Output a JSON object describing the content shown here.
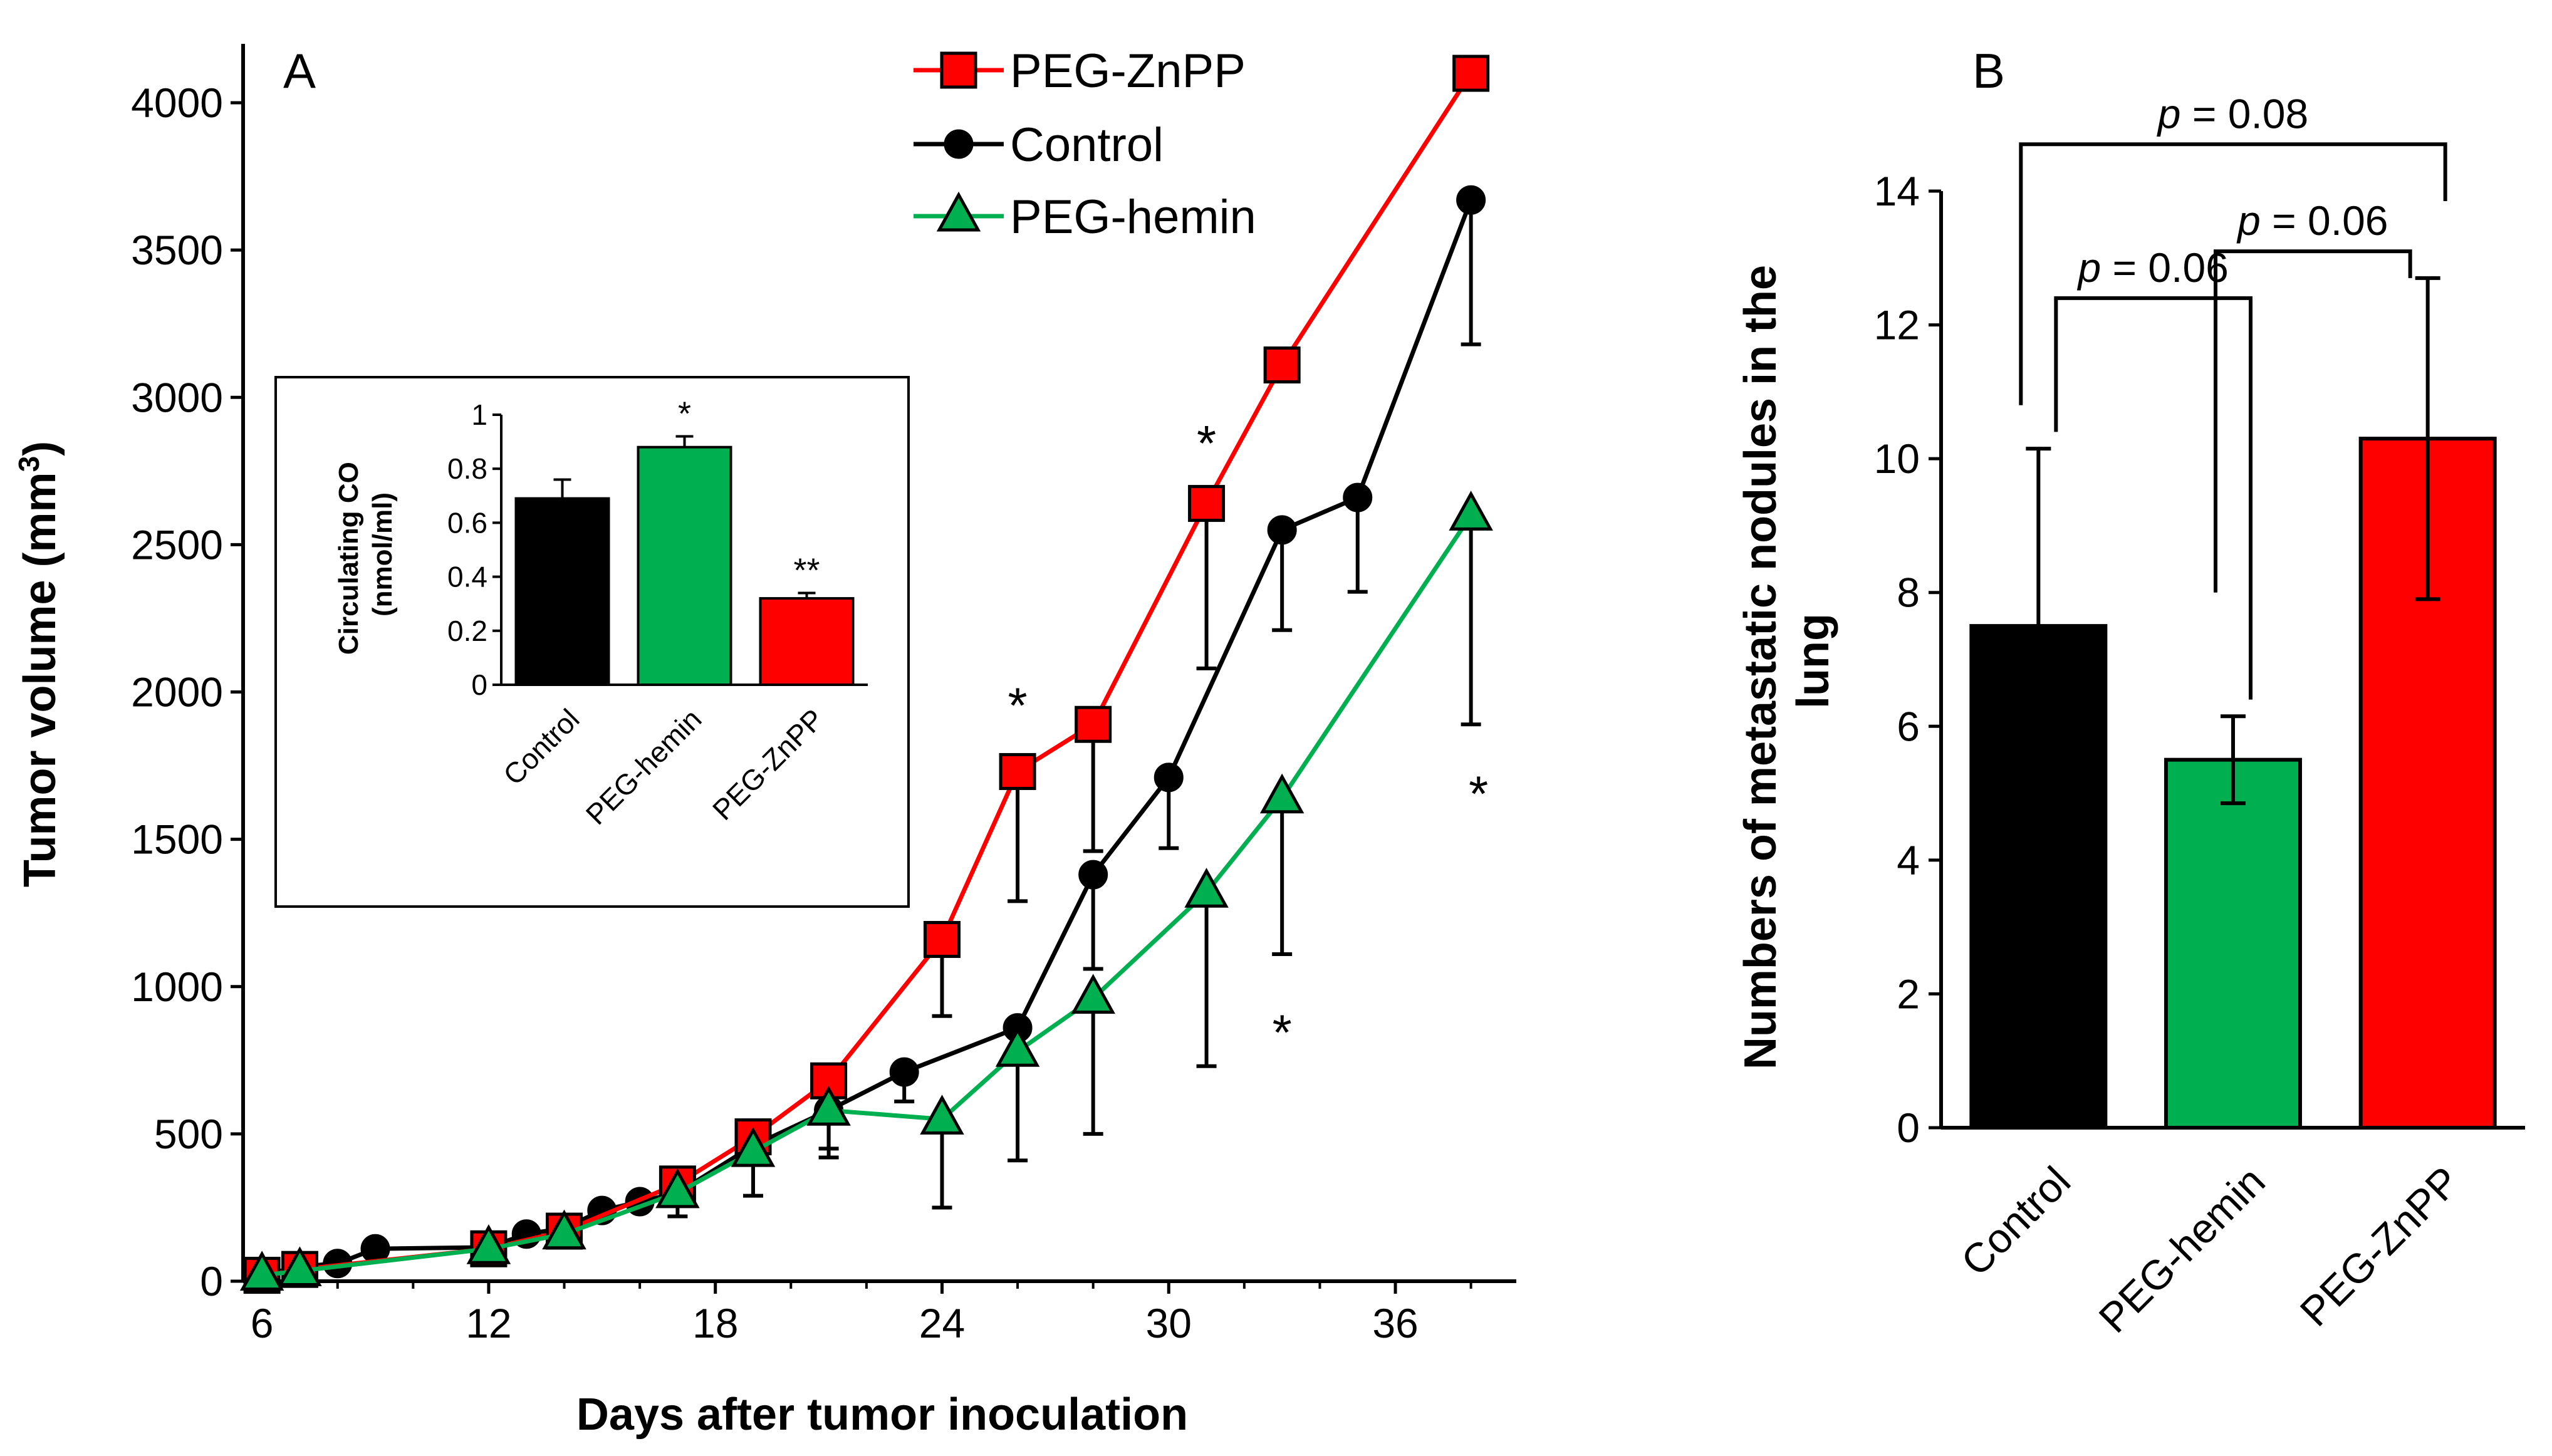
{
  "colors": {
    "control": "#000000",
    "zn": "#ff0000",
    "hemin": "#00b050",
    "axis": "#000000",
    "background": "#ffffff"
  },
  "panel_a": {
    "label": "A",
    "legend": [
      "PEG-ZnPP",
      "Control",
      "PEG-hemin"
    ],
    "stars": [
      "*",
      "*",
      "*",
      "*"
    ]
  },
  "panel_b": {
    "label": "B",
    "pvalues": [
      "p = 0.08",
      "p = 0.06",
      "p = 0.06"
    ]
  },
  "inset": {
    "stars": [
      "*",
      "**"
    ]
  },
  "chart_data": [
    {
      "id": "tumor-growth",
      "type": "line",
      "title": "",
      "xlabel": "Days after tumor inoculation",
      "ylabel": "Tumor volume (mm³)",
      "xlim": [
        5.5,
        39.2
      ],
      "ylim": [
        0,
        4200
      ],
      "xticks": [
        6,
        12,
        18,
        24,
        30,
        36
      ],
      "yticks": [
        0,
        500,
        1000,
        1500,
        2000,
        2500,
        3000,
        3500,
        4000
      ],
      "grid": false,
      "legend_position": "top-center",
      "series": [
        {
          "name": "PEG-ZnPP",
          "color": "#ff0000",
          "marker": "square",
          "x": [
            6,
            7,
            12,
            14,
            17,
            19,
            21,
            24,
            26,
            28,
            31,
            33,
            38
          ],
          "y": [
            20,
            40,
            110,
            170,
            330,
            490,
            680,
            1160,
            1730,
            1890,
            2640,
            3110,
            4100
          ],
          "err_up": [
            0,
            0,
            0,
            0,
            0,
            0,
            0,
            0,
            0,
            0,
            0,
            0,
            0
          ],
          "err_down": [
            0,
            0,
            0,
            0,
            0,
            0,
            0,
            260,
            440,
            430,
            560,
            0,
            0
          ]
        },
        {
          "name": "Control",
          "color": "#000000",
          "marker": "circle",
          "x": [
            6,
            7,
            8,
            9,
            12,
            13,
            14,
            15,
            16,
            17,
            19,
            21,
            23,
            26,
            28,
            30,
            33,
            35,
            38
          ],
          "y": [
            20,
            50,
            60,
            110,
            115,
            160,
            180,
            240,
            270,
            300,
            460,
            580,
            710,
            860,
            1380,
            1710,
            2550,
            2660,
            3670
          ],
          "err_up": [
            0,
            0,
            0,
            0,
            0,
            0,
            0,
            0,
            0,
            0,
            0,
            0,
            0,
            0,
            0,
            0,
            0,
            0,
            0
          ],
          "err_down": [
            0,
            0,
            0,
            0,
            0,
            0,
            0,
            0,
            0,
            0,
            0,
            130,
            100,
            0,
            320,
            240,
            340,
            320,
            490
          ]
        },
        {
          "name": "PEG-hemin",
          "color": "#00b050",
          "marker": "triangle",
          "x": [
            6,
            7,
            12,
            14,
            17,
            19,
            21,
            24,
            26,
            28,
            31,
            33,
            38
          ],
          "y": [
            20,
            35,
            110,
            160,
            300,
            440,
            580,
            550,
            780,
            960,
            1320,
            1640,
            2600
          ],
          "err_up": [
            0,
            0,
            0,
            0,
            0,
            0,
            0,
            0,
            0,
            0,
            0,
            0,
            0
          ],
          "err_down": [
            0,
            0,
            0,
            0,
            80,
            150,
            160,
            300,
            370,
            460,
            590,
            530,
            710
          ]
        }
      ],
      "annotations": [
        {
          "text": "*",
          "x": 26,
          "y": 1960
        },
        {
          "text": "*",
          "x": 31,
          "y": 2850
        },
        {
          "text": "*",
          "x": 33,
          "y": 850
        },
        {
          "text": "*",
          "x": 38.2,
          "y": 1660
        }
      ]
    },
    {
      "id": "circulating-co",
      "type": "bar",
      "title": "",
      "xlabel": "",
      "ylabel": "Circulating CO (nmol/ml)",
      "ylim": [
        0,
        1
      ],
      "yticks": [
        0,
        0.2,
        0.4,
        0.6,
        0.8,
        1
      ],
      "ytick_labels": [
        "0",
        "0.2",
        "0.4",
        "0.6",
        "0.8",
        "1"
      ],
      "categories": [
        "Control",
        "PEG-hemin",
        "PEG-ZnPP"
      ],
      "values": [
        0.69,
        0.88,
        0.32
      ],
      "errors": [
        0.07,
        0.04,
        0.02
      ],
      "colors": [
        "#000000",
        "#00b050",
        "#ff0000"
      ],
      "annotations": [
        {
          "text": "*",
          "category": "PEG-hemin"
        },
        {
          "text": "**",
          "category": "PEG-ZnPP"
        }
      ]
    },
    {
      "id": "metastatic-nodules",
      "type": "bar",
      "title": "",
      "xlabel": "",
      "ylabel": "Numbers of metastatic nodules in the lung",
      "ylim": [
        0,
        14
      ],
      "yticks": [
        0,
        2,
        4,
        6,
        8,
        10,
        12,
        14
      ],
      "categories": [
        "Control",
        "PEG-hemin",
        "PEG-ZnPP"
      ],
      "values": [
        7.5,
        5.5,
        10.3
      ],
      "errors": [
        2.65,
        0.65,
        2.4
      ],
      "colors": [
        "#000000",
        "#00b050",
        "#ff0000"
      ],
      "comparisons": [
        {
          "from": "Control",
          "to": "PEG-ZnPP",
          "label": "p = 0.08"
        },
        {
          "from": "Control",
          "to": "PEG-hemin",
          "label": "p = 0.06"
        },
        {
          "from": "PEG-hemin",
          "to": "PEG-ZnPP",
          "label": "p = 0.06"
        }
      ]
    }
  ]
}
